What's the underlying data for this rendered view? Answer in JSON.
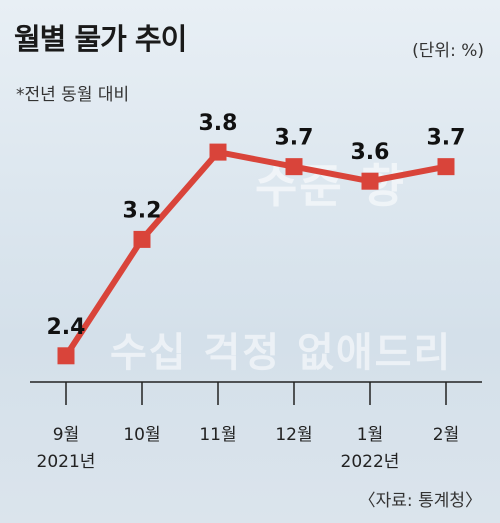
{
  "chart_data": {
    "type": "line",
    "title": "월별 물가 추이",
    "unit": "(단위: %)",
    "subtitle": "*전년 동월 대비",
    "source": "〈자료: 통계청〉",
    "categories": [
      "9월",
      "10월",
      "11월",
      "12월",
      "1월",
      "2월"
    ],
    "year_labels": [
      "2021년",
      "",
      "",
      "",
      "2022년",
      ""
    ],
    "series": [
      {
        "values": [
          2.4,
          3.2,
          3.8,
          3.7,
          3.6,
          3.7
        ]
      }
    ],
    "value_labels": [
      "2.4",
      "3.2",
      "3.8",
      "3.7",
      "3.6",
      "3.7"
    ],
    "ylim": [
      2.0,
      4.0
    ],
    "grid": false,
    "line_color": "#d9443a"
  }
}
